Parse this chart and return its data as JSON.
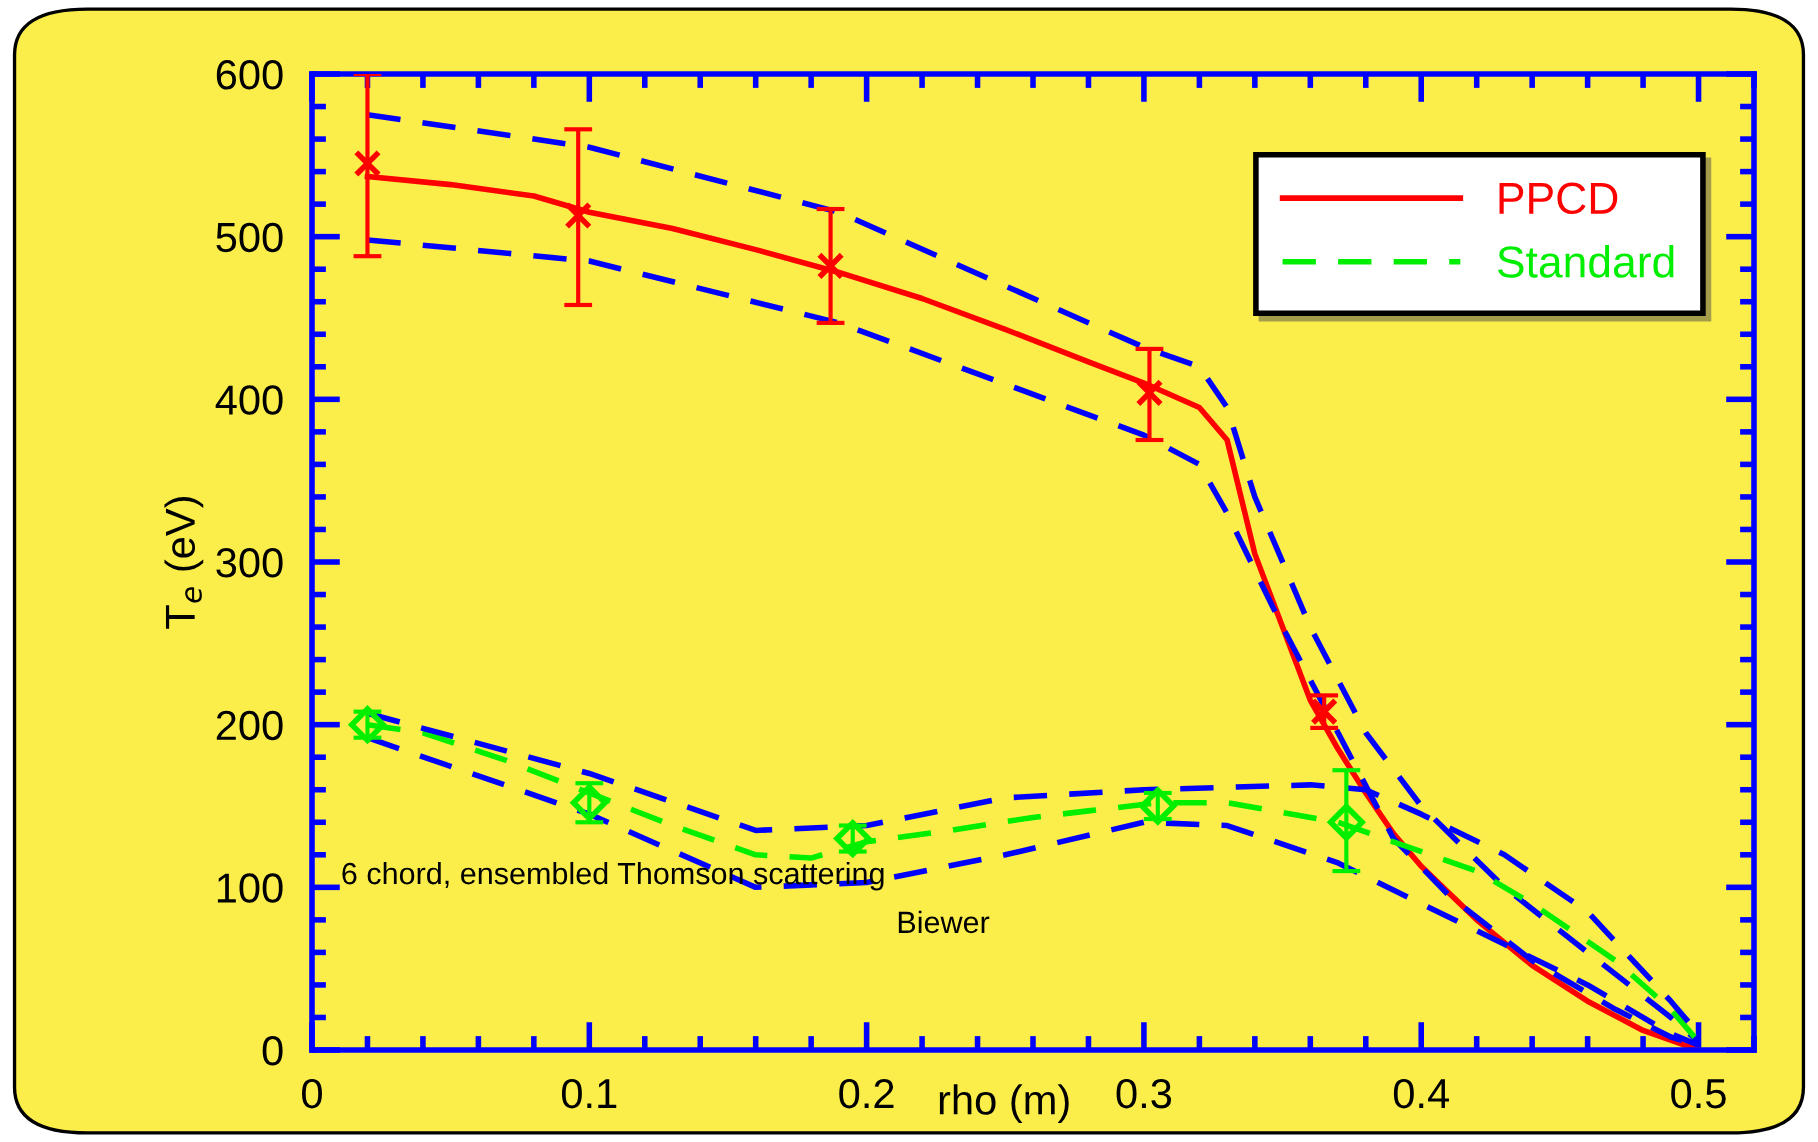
{
  "chart_data": {
    "type": "line",
    "xlabel": "rho (m)",
    "ylabel": "T$_{e}$ (eV)",
    "xlim": [
      0,
      0.52
    ],
    "xticks": [
      0,
      0.1,
      0.2,
      0.3,
      0.4,
      0.5
    ],
    "ylim": [
      0,
      600
    ],
    "yticks": [
      0,
      100,
      200,
      300,
      400,
      500,
      600
    ],
    "grid": false,
    "legend": "top right",
    "annotations": [
      "6 chord, ensembled Thomson scattering",
      "Biewer"
    ],
    "series": [
      {
        "name": "PPCD",
        "color": "#ff0000",
        "line_style": "solid",
        "marker": "none",
        "x": [
          0.02,
          0.05,
          0.08,
          0.1,
          0.13,
          0.16,
          0.19,
          0.22,
          0.25,
          0.28,
          0.3,
          0.32,
          0.33,
          0.34,
          0.35,
          0.36,
          0.37,
          0.38,
          0.39,
          0.4,
          0.42,
          0.44,
          0.46,
          0.48,
          0.5
        ],
        "values": [
          537,
          532,
          525,
          515,
          505,
          492,
          478,
          462,
          443,
          423,
          410,
          395,
          375,
          305,
          260,
          215,
          185,
          158,
          133,
          113,
          80,
          52,
          30,
          12,
          0
        ]
      },
      {
        "type": "line",
        "color": "#0000ff",
        "line_style": "dashed",
        "marker": "none",
        "x": [
          0.02,
          0.1,
          0.19,
          0.3,
          0.32,
          0.33,
          0.34,
          0.36,
          0.38,
          0.4,
          0.43,
          0.46,
          0.49,
          0.5
        ],
        "values": [
          575,
          555,
          515,
          432,
          420,
          395,
          340,
          260,
          195,
          150,
          100,
          60,
          20,
          5
        ]
      },
      {
        "type": "line",
        "color": "#0000ff",
        "line_style": "dashed",
        "marker": "none",
        "x": [
          0.02,
          0.1,
          0.19,
          0.3,
          0.32,
          0.33,
          0.35,
          0.37,
          0.39,
          0.41,
          0.44,
          0.47,
          0.49,
          0.5
        ],
        "values": [
          498,
          485,
          447,
          378,
          360,
          330,
          260,
          195,
          130,
          95,
          55,
          25,
          8,
          3
        ]
      },
      {
        "type": "scatter",
        "color": "#ff0000",
        "marker": "cross",
        "x": [
          0.02,
          0.096,
          0.187,
          0.302,
          0.365
        ],
        "values": [
          545,
          513,
          482,
          404,
          208
        ],
        "errors": [
          [
            488,
            600
          ],
          [
            458,
            566
          ],
          [
            447,
            517
          ],
          [
            375,
            431
          ],
          [
            198,
            218
          ]
        ]
      },
      {
        "name": "Standard",
        "color": "#00ee00",
        "line_style": "dashed",
        "marker": "none",
        "x": [
          0.02,
          0.04,
          0.07,
          0.1,
          0.13,
          0.16,
          0.18,
          0.2,
          0.23,
          0.26,
          0.28,
          0.305,
          0.33,
          0.37,
          0.39,
          0.42,
          0.44,
          0.47,
          0.49,
          0.5
        ],
        "values": [
          200,
          195,
          178,
          158,
          138,
          120,
          118,
          128,
          135,
          143,
          147,
          152,
          152,
          140,
          128,
          110,
          90,
          55,
          25,
          5
        ]
      },
      {
        "type": "line",
        "color": "#0000ff",
        "line_style": "dashed",
        "marker": "none",
        "x": [
          0.02,
          0.1,
          0.16,
          0.2,
          0.25,
          0.3,
          0.36,
          0.38,
          0.4,
          0.43,
          0.46,
          0.49,
          0.5
        ],
        "values": [
          207,
          170,
          135,
          138,
          155,
          160,
          163,
          160,
          145,
          120,
          85,
          30,
          10
        ]
      },
      {
        "type": "line",
        "color": "#0000ff",
        "line_style": "dashed",
        "marker": "none",
        "x": [
          0.02,
          0.1,
          0.16,
          0.2,
          0.25,
          0.3,
          0.33,
          0.37,
          0.4,
          0.43,
          0.46,
          0.49,
          0.5
        ],
        "values": [
          192,
          145,
          100,
          103,
          120,
          140,
          138,
          115,
          90,
          65,
          40,
          10,
          3
        ]
      },
      {
        "type": "scatter",
        "color": "#00ee00",
        "marker": "diamond",
        "x": [
          0.02,
          0.1,
          0.195,
          0.305,
          0.373
        ],
        "values": [
          200,
          152,
          130,
          150,
          140
        ],
        "errors": [
          [
            192,
            208
          ],
          [
            140,
            164
          ],
          [
            122,
            138
          ],
          [
            142,
            158
          ],
          [
            110,
            172
          ]
        ]
      }
    ]
  }
}
